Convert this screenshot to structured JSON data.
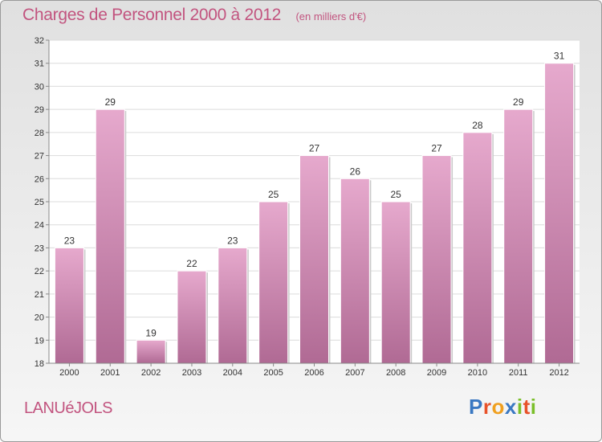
{
  "chart_data": {
    "type": "bar",
    "title": "Charges de Personnel 2000 à 2012",
    "subtitle": "(en milliers d'€)",
    "categories": [
      "2000",
      "2001",
      "2002",
      "2003",
      "2004",
      "2005",
      "2006",
      "2007",
      "2008",
      "2009",
      "2010",
      "2011",
      "2012"
    ],
    "values": [
      23,
      29,
      19,
      22,
      23,
      25,
      27,
      26,
      25,
      27,
      28,
      29,
      31
    ],
    "ylim": [
      18,
      32
    ],
    "yticks": [
      18,
      19,
      20,
      21,
      22,
      23,
      24,
      25,
      26,
      27,
      28,
      29,
      30,
      31,
      32
    ],
    "grid": true,
    "xlabel": "",
    "ylabel": "",
    "bar_color_top": "#e6a9cd",
    "bar_color_bottom": "#b06a94"
  },
  "commune": "LANUéJOLS",
  "brand": {
    "letters": [
      "P",
      "r",
      "o",
      "x",
      "i",
      "t",
      "i"
    ],
    "colors": [
      "#3a78c2",
      "#e8522a",
      "#f0a020",
      "#3a78c2",
      "#7bbf2a",
      "#e8522a",
      "#7bbf2a"
    ]
  }
}
